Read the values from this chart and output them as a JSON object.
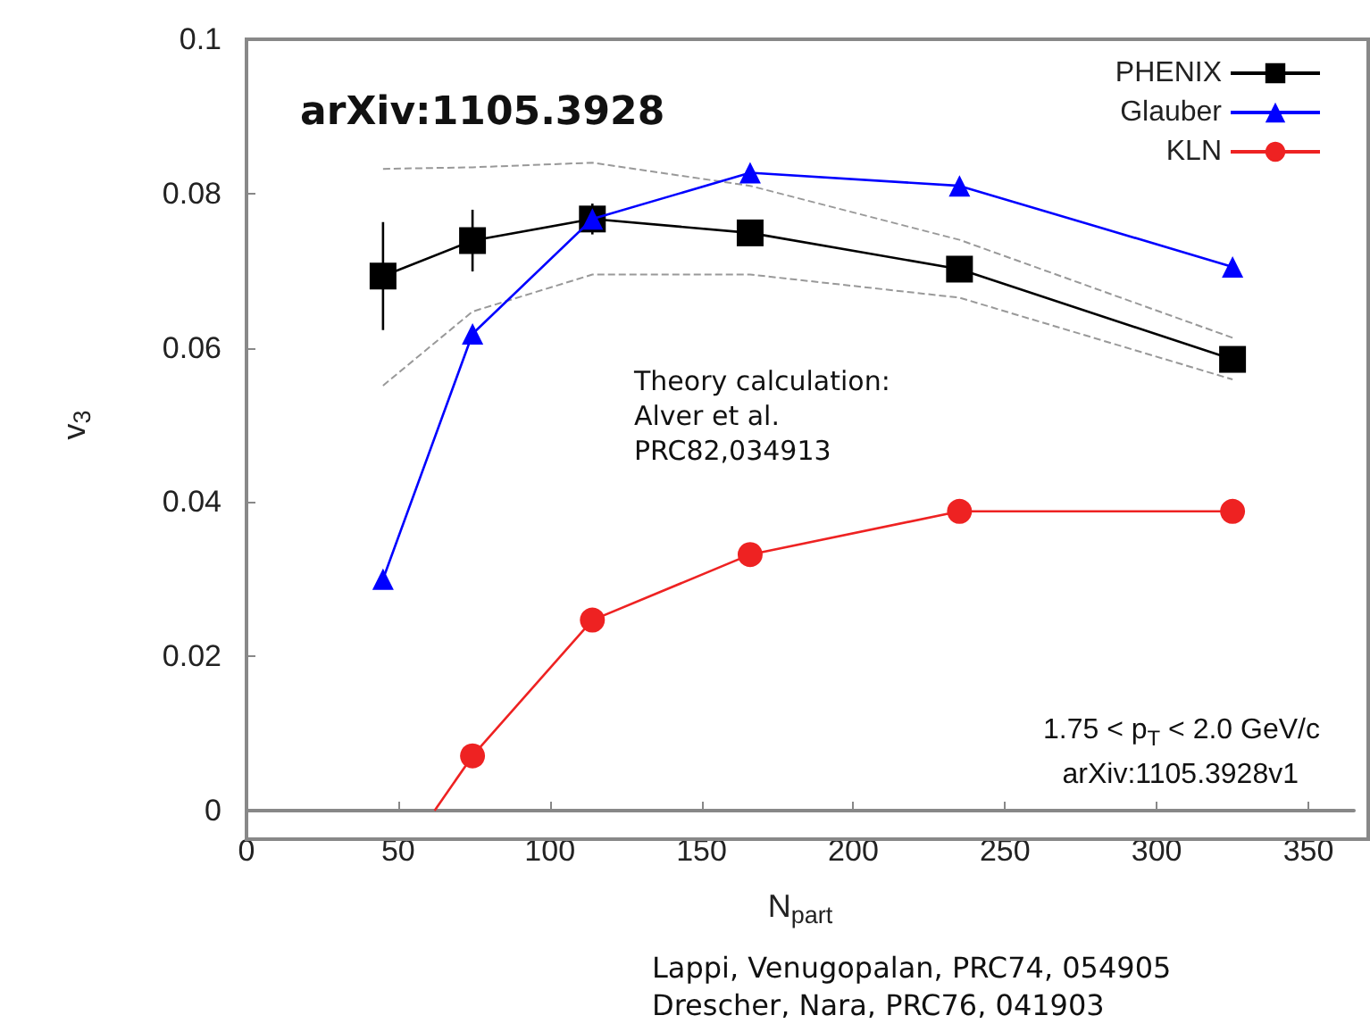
{
  "chart_data": {
    "type": "line",
    "xlabel": "N$_{part}$",
    "ylabel": "v$_{3}$",
    "xlim": [
      0,
      365
    ],
    "xticks": [
      0,
      50,
      100,
      150,
      200,
      250,
      300,
      350
    ],
    "ylim": [
      0,
      0.1
    ],
    "yticks": [
      0,
      0.02,
      0.04,
      0.06,
      0.08,
      0.1
    ],
    "grid": false,
    "legend": "top right",
    "line_style": "solid",
    "series": [
      {
        "name": "PHENIX",
        "color": "#000000",
        "marker": "square",
        "x": [
          45,
          74.5,
          114,
          166,
          235,
          325
        ],
        "values": [
          0.0693,
          0.0739,
          0.0767,
          0.0749,
          0.0702,
          0.0585
        ],
        "errors": [
          0.007,
          0.004,
          0.002,
          null,
          null,
          null
        ]
      },
      {
        "color": "#999999",
        "marker": "none",
        "line_style": "dashed",
        "x": [
          45,
          74.5,
          114,
          166,
          235,
          325
        ],
        "values": [
          0.0832,
          0.0834,
          0.084,
          0.081,
          0.074,
          0.0613
        ]
      },
      {
        "color": "#999999",
        "marker": "none",
        "line_style": "dashed",
        "x": [
          45,
          74.5,
          114,
          166,
          235,
          325
        ],
        "values": [
          0.0551,
          0.0647,
          0.0695,
          0.0695,
          0.0665,
          0.0559
        ]
      },
      {
        "name": "Glauber",
        "color": "#0000ff",
        "marker": "triangle",
        "x": [
          45,
          74.5,
          114,
          166,
          235,
          325
        ],
        "values": [
          0.03,
          0.0618,
          0.0767,
          0.0827,
          0.081,
          0.0705
        ]
      },
      {
        "name": "KLN",
        "color": "#ee2222",
        "marker": "circle",
        "x": [
          62,
          74.5,
          114,
          166,
          235,
          325
        ],
        "values": [
          0,
          0.0071,
          0.0247,
          0.0332,
          0.0388,
          0.0388
        ]
      }
    ],
    "annotations": [
      "arXiv:1105.3928",
      "Theory calculation:\nAlver et al.\nPRC82,034913",
      "1.75 < p$_{T}$ < 2.0 GeV/c",
      "arXiv:1105.3928v1",
      "Lappi, Venugopalan, PRC74, 054905\nDrescher, Nara, PRC76, 041903"
    ]
  }
}
